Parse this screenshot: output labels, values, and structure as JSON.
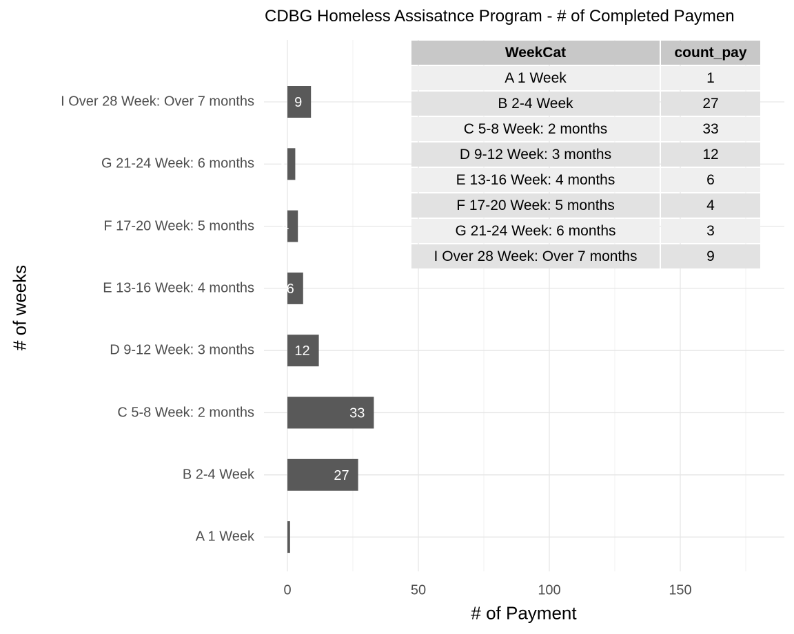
{
  "chart_data": {
    "type": "bar",
    "orientation": "horizontal",
    "title": "CDBG Homeless Assisatnce Program - # of Completed Paymen",
    "xlabel": "# of Payment",
    "ylabel": "# of weeks",
    "xlim": [
      0,
      190
    ],
    "x_ticks": [
      0,
      50,
      100,
      150
    ],
    "grid": true,
    "categories": [
      "A 1 Week",
      "B 2-4 Week",
      "C 5-8 Week: 2 months",
      "D 9-12 Week: 3 months",
      "E 13-16 Week: 4 months",
      "F 17-20 Week: 5 months",
      "G 21-24 Week: 6 months",
      "I Over 28 Week: Over 7 months"
    ],
    "values": [
      1,
      27,
      33,
      12,
      6,
      4,
      3,
      9
    ],
    "data_labels": [
      "",
      "27",
      "33",
      "12",
      "6",
      "4",
      "3",
      "9"
    ],
    "bar_color": "#595959"
  },
  "table": {
    "headers": [
      "WeekCat",
      "count_pay"
    ],
    "rows": [
      [
        "A 1 Week",
        "1"
      ],
      [
        "B 2-4 Week",
        "27"
      ],
      [
        "C 5-8 Week: 2 months",
        "33"
      ],
      [
        "D 9-12 Week: 3 months",
        "12"
      ],
      [
        "E 13-16 Week: 4 months",
        "6"
      ],
      [
        "F 17-20 Week: 5 months",
        "4"
      ],
      [
        "G 21-24 Week: 6 months",
        "3"
      ],
      [
        "I Over 28 Week: Over 7 months",
        "9"
      ]
    ]
  }
}
